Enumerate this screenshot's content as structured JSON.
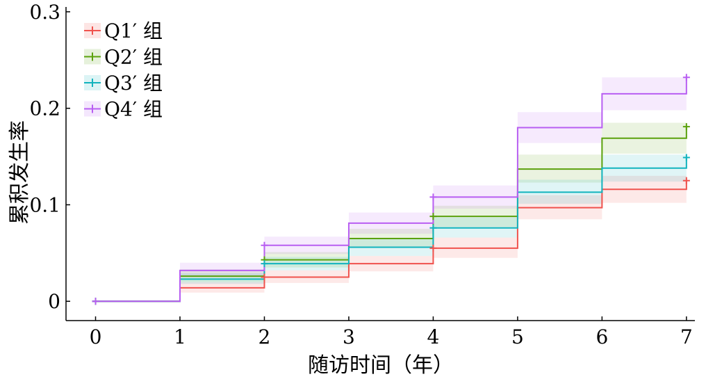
{
  "chart_data": {
    "type": "line",
    "step": true,
    "xlabel": "随访时间（年）",
    "ylabel": "累积发生率",
    "xlim": [
      -0.35,
      7.1
    ],
    "ylim": [
      -0.02,
      0.305
    ],
    "xticks": [
      0,
      1,
      2,
      3,
      4,
      5,
      6,
      7
    ],
    "yticks": [
      0,
      0.1,
      0.2,
      0.3
    ],
    "xtick_labels": [
      "0",
      "1",
      "2",
      "3",
      "4",
      "5",
      "6",
      "7"
    ],
    "ytick_labels": [
      "0",
      "0.1",
      "0.2",
      "0.3"
    ],
    "legend_position": "top-left",
    "grid": false,
    "series": [
      {
        "name": "Q1′ 组",
        "color": "#f0524d",
        "x": [
          0,
          1,
          2,
          3,
          4,
          5,
          6,
          7
        ],
        "y": [
          0,
          0.014,
          0.025,
          0.039,
          0.055,
          0.097,
          0.116,
          0.125
        ],
        "lower": [
          0,
          0.009,
          0.019,
          0.031,
          0.045,
          0.085,
          0.102,
          0.11
        ],
        "upper": [
          0,
          0.02,
          0.032,
          0.047,
          0.066,
          0.11,
          0.13,
          0.14
        ]
      },
      {
        "name": "Q2′ 组",
        "color": "#5aa10c",
        "x": [
          0,
          1,
          2,
          3,
          4,
          5,
          6,
          7
        ],
        "y": [
          0,
          0.026,
          0.043,
          0.065,
          0.088,
          0.137,
          0.169,
          0.181
        ],
        "lower": [
          0,
          0.02,
          0.035,
          0.056,
          0.077,
          0.123,
          0.153,
          0.164
        ],
        "upper": [
          0,
          0.033,
          0.051,
          0.075,
          0.099,
          0.152,
          0.185,
          0.198
        ]
      },
      {
        "name": "Q3′ 组",
        "color": "#12b3bd",
        "x": [
          0,
          1,
          2,
          3,
          4,
          5,
          6,
          7
        ],
        "y": [
          0,
          0.023,
          0.039,
          0.056,
          0.076,
          0.113,
          0.138,
          0.149
        ],
        "lower": [
          0,
          0.018,
          0.032,
          0.047,
          0.066,
          0.101,
          0.124,
          0.134
        ],
        "upper": [
          0,
          0.029,
          0.046,
          0.065,
          0.087,
          0.126,
          0.152,
          0.164
        ]
      },
      {
        "name": "Q4′ 组",
        "color": "#b85ef2",
        "x": [
          0,
          1,
          2,
          3,
          4,
          5,
          6,
          7
        ],
        "y": [
          0,
          0.032,
          0.058,
          0.081,
          0.108,
          0.18,
          0.215,
          0.232
        ],
        "lower": [
          0,
          0.025,
          0.049,
          0.07,
          0.096,
          0.164,
          0.198,
          0.214
        ],
        "upper": [
          0,
          0.04,
          0.067,
          0.092,
          0.12,
          0.196,
          0.232,
          0.25
        ]
      }
    ]
  }
}
